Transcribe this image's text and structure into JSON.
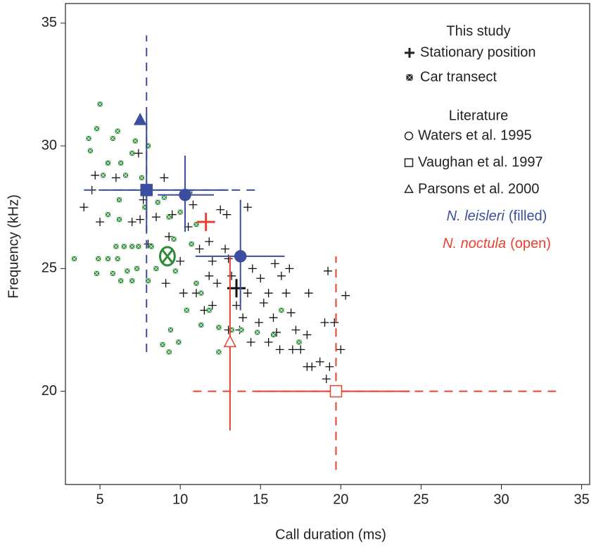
{
  "chart_data": {
    "type": "scatter",
    "x_label": "Call duration (ms)",
    "y_label": "Frequency (kHz)",
    "xlim": [
      2.85,
      35.5
    ],
    "ylim": [
      16.2,
      35.8
    ],
    "xticks": [
      5,
      10,
      15,
      20,
      25,
      30,
      35
    ],
    "yticks": [
      20,
      25,
      30,
      35
    ],
    "series": [
      {
        "name": "Stationary position",
        "color": "#111111",
        "marker": "plus",
        "x": [
          4.0,
          4.5,
          4.7,
          5.0,
          6.0,
          7.0,
          7.4,
          7.7,
          7.5,
          8.0,
          8.5,
          9.0,
          9.3,
          9.5,
          9.1,
          10.0,
          10.5,
          10.8,
          11.2,
          11.8,
          12.0,
          12.5,
          12.8,
          12.3,
          12.0,
          11.5,
          11.0,
          10.2,
          13.0,
          13.2,
          13.5,
          13.9,
          13.0,
          14.2,
          14.5,
          15.0,
          15.2,
          15.5,
          15.8,
          16.0,
          16.3,
          16.6,
          16.9,
          17.2,
          17.5,
          17.0,
          16.2,
          17.9,
          18.0,
          18.2,
          17.9,
          18.7,
          19.3,
          19.0,
          19.6,
          20.0,
          20.3,
          19.2,
          19.1,
          14.4,
          14.9,
          15.5,
          16.8,
          15.9,
          12.9,
          14.2,
          11.8,
          13.7
        ],
        "values": [
          27.5,
          28.2,
          28.8,
          26.9,
          28.7,
          26.9,
          29.7,
          27.8,
          27.0,
          26.0,
          27.1,
          28.7,
          26.3,
          27.2,
          24.4,
          25.3,
          26.7,
          27.6,
          25.8,
          24.7,
          25.3,
          27.4,
          25.8,
          24.4,
          23.5,
          23.3,
          24.0,
          24.0,
          25.4,
          24.7,
          23.5,
          23.0,
          22.5,
          24.0,
          25.0,
          24.6,
          23.6,
          24.0,
          23.0,
          22.4,
          24.7,
          24.0,
          23.2,
          22.5,
          21.7,
          21.7,
          21.7,
          22.3,
          24.0,
          21.0,
          21.0,
          21.2,
          21.0,
          22.8,
          22.8,
          21.7,
          23.9,
          24.9,
          20.5,
          22.0,
          22.8,
          22.0,
          25.0,
          25.2,
          27.2,
          27.5,
          26.1,
          22.5
        ]
      },
      {
        "name": "Car transect",
        "color": "#2e8b3a",
        "marker": "square-x",
        "x": [
          5.0,
          4.8,
          4.3,
          5.8,
          6.1,
          7.2,
          4.4,
          6.3,
          7.0,
          8.0,
          5.2,
          5.5,
          6.6,
          7.6,
          6.2,
          5.5,
          6.2,
          7.8,
          8.6,
          9.0,
          10.0,
          9.3,
          10.6,
          11.0,
          9.6,
          10.7,
          3.4,
          4.9,
          5.5,
          6.0,
          6.5,
          7.0,
          7.4,
          6.1,
          6.7,
          7.3,
          8.2,
          8.5,
          4.8,
          5.8,
          6.3,
          7.0,
          8.0,
          9.7,
          10.4,
          11.0,
          11.3,
          11.8,
          11.3,
          12.4,
          13.2,
          13.8,
          14.8,
          15.8,
          17.4,
          9.4,
          9.9,
          8.9,
          9.3,
          12.4,
          16.3
        ],
        "values": [
          31.7,
          30.7,
          30.3,
          30.3,
          30.6,
          30.2,
          29.8,
          29.3,
          29.7,
          30.0,
          28.8,
          29.3,
          28.8,
          28.7,
          27.8,
          27.2,
          27.0,
          27.5,
          27.7,
          27.9,
          27.3,
          27.1,
          28.1,
          26.8,
          26.2,
          26.0,
          25.4,
          25.4,
          25.4,
          25.9,
          25.9,
          25.9,
          25.9,
          25.4,
          24.9,
          25.0,
          25.9,
          25.0,
          24.8,
          24.8,
          24.5,
          24.5,
          24.5,
          24.9,
          23.3,
          24.4,
          24.0,
          23.3,
          22.7,
          22.6,
          22.5,
          22.5,
          22.4,
          22.3,
          22.0,
          22.5,
          22.0,
          21.9,
          21.6,
          21.6,
          23.3
        ]
      }
    ],
    "reference_points": [
      {
        "shape": "plus",
        "color": "#111111",
        "x": 13.5,
        "y": 24.2
      },
      {
        "shape": "circle-x",
        "color": "#2e8b3a",
        "x": 9.2,
        "y": 25.5
      },
      {
        "shape": "plus",
        "color": "#e8412e",
        "x": 11.6,
        "y": 26.9
      },
      {
        "shape": "triangle",
        "color": "#3b4ea0",
        "filled": true,
        "x": 7.5,
        "y": 31.05
      },
      {
        "shape": "square",
        "color": "#3b4ea0",
        "filled": true,
        "x": 7.9,
        "y": 28.2,
        "x_range": [
          5.3,
          13.0
        ],
        "y_range": [
          26.5,
          31.3
        ],
        "x_range_dashed": [
          4.0,
          15.0
        ],
        "y_range_dashed": [
          21.6,
          34.5
        ]
      },
      {
        "shape": "circle",
        "color": "#3b4ea0",
        "filled": true,
        "x": 10.3,
        "y": 28.0,
        "x_range": [
          8.6,
          12.1
        ],
        "y_range": [
          26.5,
          29.6
        ]
      },
      {
        "shape": "circle",
        "color": "#3b4ea0",
        "filled": true,
        "x": 13.75,
        "y": 25.5,
        "x_range": [
          10.95,
          16.5
        ],
        "y_range": [
          23.3,
          27.8
        ]
      },
      {
        "shape": "triangle",
        "color": "#e8412e",
        "filled": false,
        "x": 13.1,
        "y": 22.0,
        "y_range": [
          18.4,
          25.5
        ]
      },
      {
        "shape": "square",
        "color": "#e8412e",
        "filled": false,
        "x": 19.7,
        "y": 20.0,
        "x_range": [
          14.8,
          24.3
        ],
        "x_range_dashed": [
          10.8,
          33.4
        ],
        "y_range_dashed": [
          16.8,
          25.5
        ]
      }
    ],
    "legend": {
      "this_study": "This study",
      "literature": "Literature",
      "references": [
        "Waters et al. 1995",
        "Vaughan et al. 1997",
        "Parsons et al. 2000"
      ],
      "species_1": "N. leisleri",
      "species_1_note": "(filled)",
      "species_2": "N. noctula",
      "species_2_note": "(open)",
      "species_1_color": "#3b4ea0",
      "species_2_color": "#e8412e"
    }
  }
}
